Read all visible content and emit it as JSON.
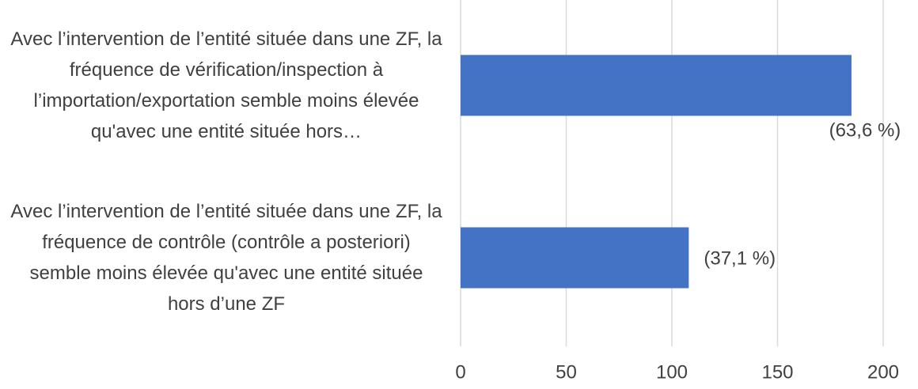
{
  "chart_data": {
    "type": "bar",
    "orientation": "horizontal",
    "categories": [
      "Avec l’intervention de l’entité située dans une ZF, la fréquence de vérification/inspection à l’importation/exportation semble moins élevée qu'avec une entité située hors…",
      "Avec l’intervention de l’entité située dans une ZF, la fréquence de contrôle (contrôle a posteriori) semble moins élevée qu'avec une entité située hors d’une ZF"
    ],
    "values": [
      185,
      108
    ],
    "value_labels": [
      "(63,6 %)",
      "(37,1 %)"
    ],
    "color": "#4472c4",
    "xlim": [
      0,
      200
    ],
    "xticks": [
      0,
      50,
      100,
      150,
      200
    ],
    "grid": true
  }
}
